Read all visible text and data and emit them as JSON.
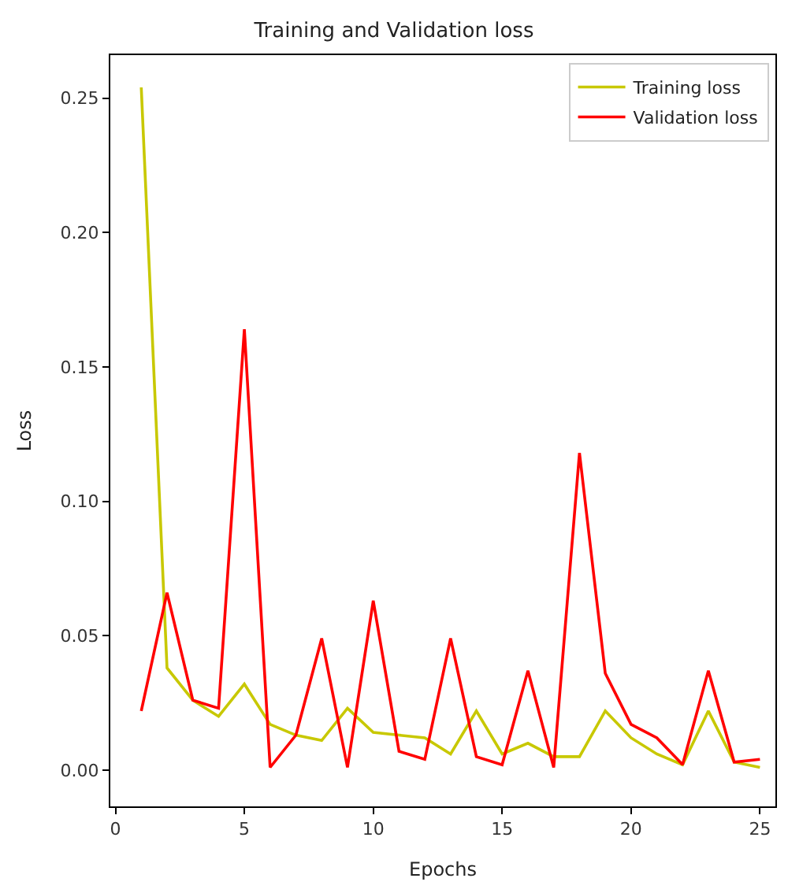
{
  "chart_data": {
    "type": "line",
    "title": "Training and Validation loss",
    "xlabel": "Epochs",
    "ylabel": "Loss",
    "x": [
      1,
      2,
      3,
      4,
      5,
      6,
      7,
      8,
      9,
      10,
      11,
      12,
      13,
      14,
      15,
      16,
      17,
      18,
      19,
      20,
      21,
      22,
      23,
      24,
      25
    ],
    "series": [
      {
        "name": "Training loss",
        "color": "#c8c800",
        "values": [
          0.254,
          0.038,
          0.026,
          0.02,
          0.032,
          0.017,
          0.013,
          0.011,
          0.023,
          0.014,
          0.013,
          0.012,
          0.006,
          0.022,
          0.006,
          0.01,
          0.005,
          0.005,
          0.022,
          0.012,
          0.006,
          0.002,
          0.022,
          0.003,
          0.001
        ]
      },
      {
        "name": "Validation loss",
        "color": "#ff0000",
        "values": [
          0.022,
          0.066,
          0.026,
          0.023,
          0.164,
          0.001,
          0.013,
          0.049,
          0.001,
          0.063,
          0.007,
          0.004,
          0.049,
          0.005,
          0.002,
          0.037,
          0.001,
          0.118,
          0.036,
          0.017,
          0.012,
          0.002,
          0.037,
          0.003,
          0.004
        ]
      }
    ],
    "xlim": [
      -0.2,
      25.6
    ],
    "ylim": [
      -0.0135,
      0.266
    ],
    "xticks": [
      0,
      5,
      10,
      15,
      20,
      25
    ],
    "yticks": [
      {
        "value": 0,
        "label": "0.00"
      },
      {
        "value": 0.05,
        "label": "0.05"
      },
      {
        "value": 0.1,
        "label": "0.10"
      },
      {
        "value": 0.15,
        "label": "0.15"
      },
      {
        "value": 0.2,
        "label": "0.20"
      },
      {
        "value": 0.25,
        "label": "0.25"
      }
    ],
    "legend": "top right",
    "marker": "none",
    "line_style": "solid"
  }
}
